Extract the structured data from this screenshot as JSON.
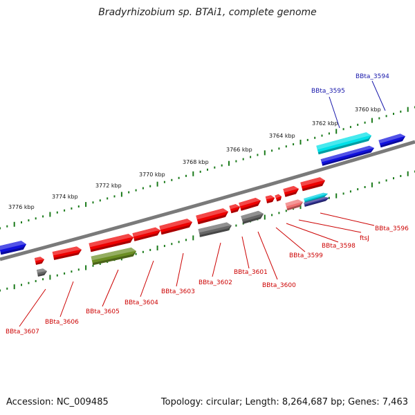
{
  "title": "Bradyrhizobium sp. BTAi1, complete genome",
  "footer": {
    "accession": "Accession: NC_009485",
    "summary": "Topology: circular; Length: 8,264,687 bp; Genes: 7,463"
  },
  "colors": {
    "backbone": "#7a7a7a",
    "tick": "#1a7a1a",
    "forward_label": "#1515aa",
    "reverse_label": "#cc0000"
  },
  "scale": {
    "unit": "kbp",
    "tick_labels": [
      "3776 kbp",
      "3774 kbp",
      "3772 kbp",
      "3770 kbp",
      "3768 kbp",
      "3766 kbp",
      "3764 kbp",
      "3762 kbp",
      "3760 kbp"
    ]
  },
  "forward_genes": [
    {
      "name": "BBta_3595",
      "color": "#00e0e8"
    },
    {
      "name": "BBta_3594",
      "color": "#0a0adc"
    }
  ],
  "reverse_genes": [
    {
      "name": "BBta_3596",
      "color": "#ee0000"
    },
    {
      "name": "ftsJ",
      "color": "#ee0000"
    },
    {
      "name": "BBta_3598",
      "color": "#ee0000"
    },
    {
      "name": "BBta_3599",
      "color": "#ee0000"
    },
    {
      "name": "BBta_3600",
      "color": "#666666"
    },
    {
      "name": "BBta_3601",
      "color": "#ee0000"
    },
    {
      "name": "BBta_3602",
      "color": "#666666"
    },
    {
      "name": "BBta_3603",
      "color": "#ee0000"
    },
    {
      "name": "BBta_3604",
      "color": "#ee0000"
    },
    {
      "name": "BBta_3605",
      "color": "#6b8e23"
    },
    {
      "name": "BBta_3606",
      "color": "#ee0000"
    },
    {
      "name": "BBta_3607",
      "color": "#ee0000"
    }
  ]
}
